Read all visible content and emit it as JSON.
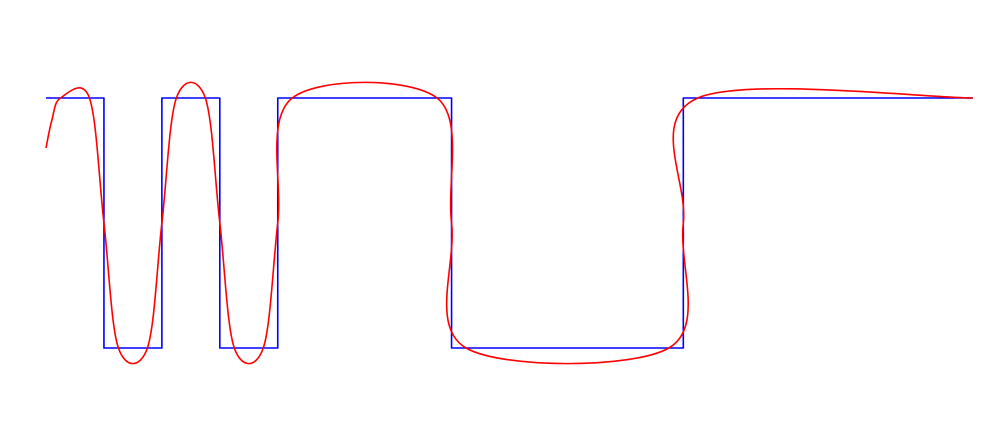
{
  "chart_data": {
    "type": "line",
    "title": "",
    "xlabel": "",
    "ylabel": "",
    "grid": false,
    "axes_visible": false,
    "xlim": [
      0,
      16
    ],
    "ylim": [
      -1,
      1
    ],
    "series": [
      {
        "style": "step",
        "color": "#0000ff",
        "points": [
          [
            0,
            1
          ],
          [
            1,
            1
          ],
          [
            1,
            -1
          ],
          [
            2,
            -1
          ],
          [
            2,
            1
          ],
          [
            3,
            1
          ],
          [
            3,
            -1
          ],
          [
            4,
            -1
          ],
          [
            4,
            1
          ],
          [
            7,
            1
          ],
          [
            7,
            -1
          ],
          [
            11,
            -1
          ],
          [
            11,
            1
          ],
          [
            16,
            1
          ]
        ]
      },
      {
        "style": "smoothed",
        "color": "#ff0000",
        "points": [
          [
            0,
            0.6
          ],
          [
            0.1,
            0.82
          ],
          [
            0.25,
            1
          ],
          [
            0.75,
            1
          ],
          [
            1,
            0
          ],
          [
            1.25,
            -1
          ],
          [
            1.75,
            -1
          ],
          [
            2,
            0
          ],
          [
            2.25,
            1
          ],
          [
            2.75,
            1
          ],
          [
            3,
            0
          ],
          [
            3.25,
            -1
          ],
          [
            3.75,
            -1
          ],
          [
            4,
            0
          ],
          [
            4.25,
            1
          ],
          [
            6.75,
            1
          ],
          [
            7,
            0
          ],
          [
            7.25,
            -1
          ],
          [
            10.75,
            -1
          ],
          [
            11,
            0
          ],
          [
            11.25,
            1
          ],
          [
            16,
            1
          ]
        ]
      }
    ]
  }
}
